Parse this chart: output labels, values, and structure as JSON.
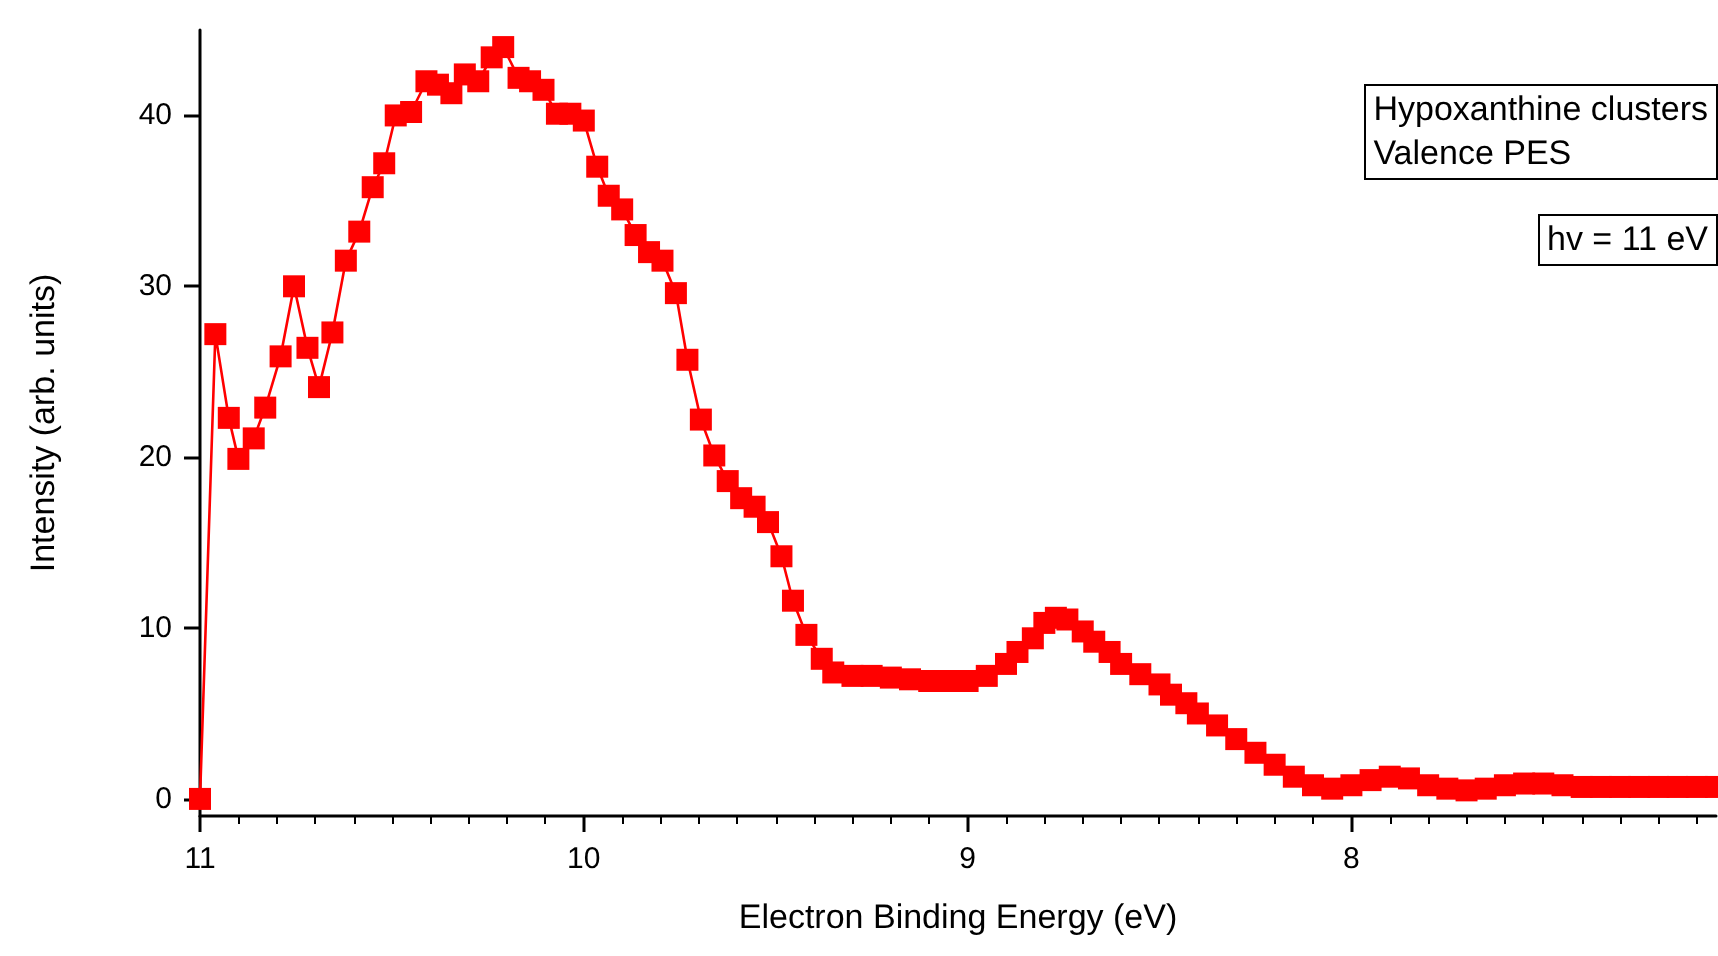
{
  "chart_data": {
    "type": "line",
    "xlabel": "Electron Binding Energy (eV)",
    "ylabel": "Intensity (arb. units)",
    "annotations": [
      "Hypoxanthine clusters\nValence PES",
      "hv = 11 eV"
    ],
    "xlim": [
      11,
      7.05
    ],
    "ylim": [
      -1,
      45
    ],
    "xticks": [
      11,
      10,
      9,
      8
    ],
    "yticks": [
      0,
      10,
      20,
      30,
      40
    ],
    "marker": "square",
    "line_style": "solid",
    "series": [
      {
        "color": "#ff0000",
        "x": [
          11,
          10.96,
          10.925,
          10.9,
          10.86,
          10.83,
          10.79,
          10.755,
          10.72,
          10.69,
          10.655,
          10.62,
          10.585,
          10.55,
          10.52,
          10.49,
          10.45,
          10.41,
          10.38,
          10.345,
          10.31,
          10.275,
          10.24,
          10.21,
          10.17,
          10.14,
          10.105,
          10.07,
          10.035,
          10,
          9.965,
          9.935,
          9.9,
          9.865,
          9.83,
          9.795,
          9.76,
          9.73,
          9.695,
          9.66,
          9.625,
          9.59,
          9.555,
          9.52,
          9.485,
          9.455,
          9.42,
          9.38,
          9.35,
          9.3,
          9.25,
          9.2,
          9.15,
          9.1,
          9.05,
          9,
          8.95,
          8.9,
          8.87,
          8.83,
          8.8,
          8.77,
          8.74,
          8.7,
          8.67,
          8.63,
          8.6,
          8.55,
          8.5,
          8.47,
          8.43,
          8.4,
          8.35,
          8.3,
          8.25,
          8.2,
          8.15,
          8.1,
          8.05,
          8,
          7.95,
          7.9,
          7.85,
          7.8,
          7.75,
          7.7,
          7.65,
          7.6,
          7.55,
          7.5,
          7.45,
          7.4,
          7.35,
          7.3,
          7.25,
          7.2,
          7.15,
          7.1,
          7.05
        ],
        "values": [
          0,
          27.2,
          22.3,
          19.9,
          21.1,
          22.9,
          25.9,
          30,
          26.4,
          24.1,
          27.3,
          31.5,
          33.2,
          35.8,
          37.2,
          40,
          40.2,
          42,
          41.8,
          41.3,
          42.4,
          42,
          43.4,
          44,
          42.2,
          42,
          41.5,
          40.1,
          40.1,
          39.7,
          37,
          35.3,
          34.5,
          33,
          32,
          31.5,
          29.6,
          25.7,
          22.2,
          20.1,
          18.6,
          17.6,
          17.1,
          16.2,
          14.2,
          11.6,
          9.6,
          8.2,
          7.4,
          7.2,
          7.2,
          7.1,
          7,
          6.9,
          6.9,
          6.9,
          7.2,
          7.9,
          8.6,
          9.4,
          10.3,
          10.6,
          10.5,
          9.8,
          9.2,
          8.6,
          7.9,
          7.3,
          6.7,
          6.1,
          5.6,
          5,
          4.3,
          3.5,
          2.7,
          2,
          1.3,
          0.8,
          0.6,
          0.8,
          1.1,
          1.3,
          1.2,
          0.8,
          0.6,
          0.5,
          0.6,
          0.8,
          0.9,
          0.9,
          0.8,
          0.7,
          0.7,
          0.7,
          0.7,
          0.7,
          0.7,
          0.7,
          0.7
        ]
      }
    ]
  }
}
